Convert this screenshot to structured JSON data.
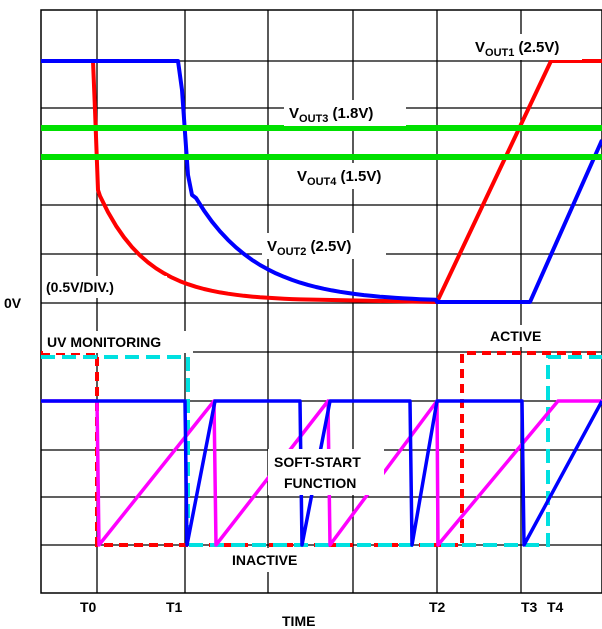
{
  "chart_data": {
    "type": "line",
    "upper_panel": {
      "zero_label": "0V",
      "scale_label": "(0.5V/DIV.)",
      "series": [
        {
          "name_main": "V",
          "name_sub": "OUT1",
          "name_tail": " (2.5V)",
          "color": "#ff0000"
        },
        {
          "name_main": "V",
          "name_sub": "OUT2",
          "name_tail": " (2.5V)",
          "color": "#0000ff"
        },
        {
          "name_main": "V",
          "name_sub": "OUT3",
          "name_tail": " (1.8V)",
          "color": "#00e000"
        },
        {
          "name_main": "V",
          "name_sub": "OUT4",
          "name_tail": " (1.5V)",
          "color": "#00e000"
        }
      ]
    },
    "lower_panel": {
      "uv_label": "UV MONITORING",
      "active_label": "ACTIVE",
      "inactive_label": "INACTIVE",
      "softstart_line1": "SOFT-START",
      "softstart_line2": "FUNCTION",
      "colors": {
        "uv1": "#ff0000",
        "uv2": "#00e0e0",
        "ss1": "#0000ff",
        "ss2": "#ff00ff"
      }
    },
    "x_axis": {
      "label": "TIME",
      "ticks": [
        "T0",
        "T1",
        "T2",
        "T3",
        "T4"
      ]
    },
    "grid": true
  }
}
